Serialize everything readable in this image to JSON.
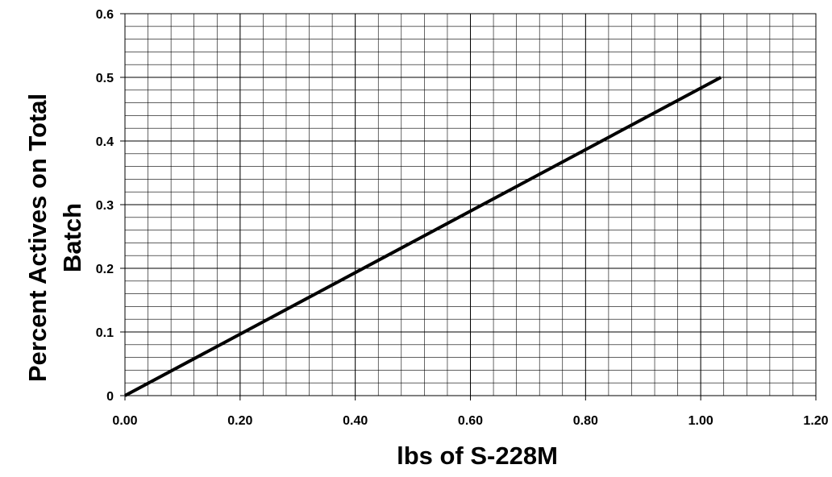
{
  "chart_data": {
    "type": "line",
    "title": "",
    "xlabel": "lbs of S-228M",
    "ylabel_lines": [
      "Percent Actives on Total",
      "Batch"
    ],
    "xlim": [
      0,
      1.2
    ],
    "ylim": [
      0,
      0.6
    ],
    "x_ticks": [
      "0.00",
      "0.20",
      "0.40",
      "0.60",
      "0.80",
      "1.00",
      "1.20"
    ],
    "y_ticks": [
      "0",
      "0.1",
      "0.2",
      "0.3",
      "0.4",
      "0.5",
      "0.6"
    ],
    "grid": {
      "major": true,
      "minor": true,
      "x_minor_step": 0.04,
      "y_minor_step": 0.02
    },
    "legend": "none",
    "series": [
      {
        "x": [
          0,
          1.035
        ],
        "y": [
          0,
          0.5
        ],
        "color": "#000000"
      }
    ]
  }
}
